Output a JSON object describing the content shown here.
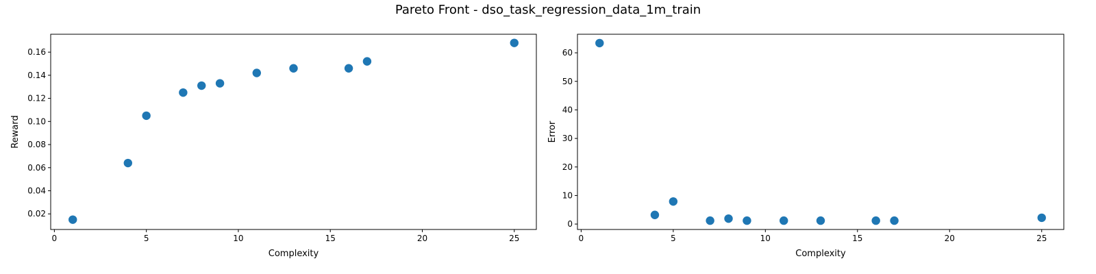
{
  "figure": {
    "title": "Pareto Front - dso_task_regression_data_1m_train"
  },
  "chart_data": [
    {
      "type": "scatter",
      "xlabel": "Complexity",
      "ylabel": "Reward",
      "xlim": [
        -0.2,
        26.2
      ],
      "ylim": [
        0.0065,
        0.1755
      ],
      "xticks": [
        0,
        5,
        10,
        15,
        20,
        25
      ],
      "yticks": [
        0.02,
        0.04,
        0.06,
        0.08,
        0.1,
        0.12,
        0.14,
        0.16
      ],
      "ytick_labels": [
        "0.02",
        "0.04",
        "0.06",
        "0.08",
        "0.10",
        "0.12",
        "0.14",
        "0.16"
      ],
      "grid": false,
      "color": "#1f77b4",
      "x": [
        1,
        4,
        5,
        7,
        8,
        9,
        11,
        13,
        16,
        17,
        25
      ],
      "y": [
        0.015,
        0.064,
        0.105,
        0.125,
        0.131,
        0.133,
        0.142,
        0.146,
        0.146,
        0.152,
        0.168
      ]
    },
    {
      "type": "scatter",
      "xlabel": "Complexity",
      "ylabel": "Error",
      "xlim": [
        -0.2,
        26.2
      ],
      "ylim": [
        -1.9,
        66.5
      ],
      "xticks": [
        0,
        5,
        10,
        15,
        20,
        25
      ],
      "yticks": [
        0,
        10,
        20,
        30,
        40,
        50,
        60
      ],
      "ytick_labels": [
        "0",
        "10",
        "20",
        "30",
        "40",
        "50",
        "60"
      ],
      "grid": false,
      "color": "#1f77b4",
      "x": [
        1,
        4,
        5,
        7,
        8,
        9,
        11,
        13,
        16,
        17,
        25
      ],
      "y": [
        63.4,
        3.2,
        7.9,
        1.2,
        1.9,
        1.2,
        1.2,
        1.2,
        1.2,
        1.2,
        2.2
      ]
    }
  ]
}
